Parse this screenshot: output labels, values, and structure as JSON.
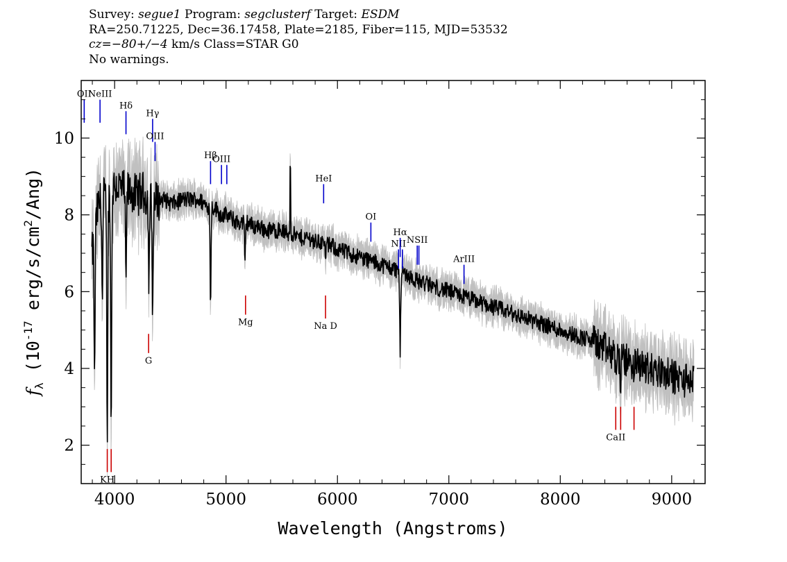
{
  "header": {
    "survey_label": "Survey:",
    "survey": "segue1",
    "program_label": "Program:",
    "program": "segclusterf",
    "target_label": "Target:",
    "target": "ESDM",
    "line2": "RA=250.71225, Dec=36.17458, Plate=2185, Fiber=115, MJD=53532",
    "cz_label": "cz=",
    "cz_value": "−80+/−4",
    "cz_rest": " km/s Class=STAR G0",
    "line4": "No warnings."
  },
  "chart_data": {
    "type": "line",
    "xlabel": "Wavelength (Angstroms)",
    "ylabel": "f_λ (10^-17 erg/s/cm^2/Ang)",
    "xlim": [
      3700,
      9300
    ],
    "ylim": [
      1,
      11.5
    ],
    "x_ticks": [
      4000,
      5000,
      6000,
      7000,
      8000,
      9000
    ],
    "y_ticks": [
      2,
      4,
      6,
      8,
      10
    ],
    "grid": false,
    "colors": {
      "flux": "#000000",
      "noise": "#c0c0c0",
      "emission": "#0000cc",
      "absorption": "#cc0000"
    },
    "series": [
      {
        "x": [
          3800,
          3850,
          3900,
          3950,
          4000,
          4050,
          4100,
          4150,
          4200,
          4250,
          4300,
          4350,
          4400,
          4450,
          4500,
          4550,
          4600,
          4650,
          4700,
          4750,
          4800,
          4850,
          4900,
          4950,
          5000,
          5050,
          5100,
          5150,
          5200,
          5250,
          5300,
          5350,
          5400,
          5450,
          5500,
          5550,
          5600,
          5650,
          5700,
          5750,
          5800,
          5850,
          5900,
          5950,
          6000,
          6100,
          6200,
          6300,
          6400,
          6500,
          6600,
          6700,
          6800,
          6900,
          7000,
          7100,
          7200,
          7300,
          7400,
          7500,
          7600,
          7700,
          7800,
          7900,
          8000,
          8100,
          8200,
          8300,
          8400,
          8500,
          8600,
          8700,
          8800,
          8900,
          9000,
          9100,
          9200
        ],
        "y": [
          7.0,
          8.2,
          8.5,
          8.4,
          8.8,
          8.7,
          8.6,
          8.6,
          8.5,
          8.6,
          8.4,
          8.3,
          8.4,
          8.4,
          8.3,
          8.3,
          8.4,
          8.4,
          8.4,
          8.4,
          8.3,
          8.2,
          8.2,
          8.0,
          8.0,
          7.9,
          7.8,
          7.8,
          7.8,
          7.7,
          7.7,
          7.6,
          7.6,
          7.6,
          7.6,
          7.5,
          7.5,
          7.4,
          7.4,
          7.4,
          7.3,
          7.3,
          7.2,
          7.2,
          7.1,
          7.0,
          6.9,
          6.8,
          6.7,
          6.6,
          6.5,
          6.3,
          6.2,
          6.1,
          6.0,
          5.9,
          5.8,
          5.7,
          5.6,
          5.5,
          5.4,
          5.3,
          5.2,
          5.1,
          5.0,
          4.9,
          4.8,
          4.7,
          4.5,
          4.3,
          4.2,
          4.1,
          4.0,
          3.9,
          3.8,
          3.7,
          3.7
        ]
      }
    ],
    "absorption_dips": [
      {
        "x": 3820,
        "y": 3.5
      },
      {
        "x": 3890,
        "y": 5.6
      },
      {
        "x": 3934,
        "y": 2.2
      },
      {
        "x": 3969,
        "y": 2.1
      },
      {
        "x": 4102,
        "y": 6.0
      },
      {
        "x": 4308,
        "y": 6.2
      },
      {
        "x": 4341,
        "y": 5.3
      },
      {
        "x": 4861,
        "y": 5.7
      },
      {
        "x": 5170,
        "y": 6.7
      },
      {
        "x": 5893,
        "y": 7.0
      },
      {
        "x": 6563,
        "y": 4.4
      },
      {
        "x": 8498,
        "y": 4.0
      },
      {
        "x": 8542,
        "y": 3.6
      },
      {
        "x": 8662,
        "y": 3.6
      }
    ],
    "spikes": [
      {
        "x": 5577,
        "y": 10.4
      },
      {
        "x": 8300,
        "y": 5.3
      },
      {
        "x": 8920,
        "y": 4.6
      }
    ],
    "emission_lines": [
      {
        "label": "OII",
        "x": 3727,
        "y0": 10.4,
        "y1": 11.0
      },
      {
        "label": "NeIII",
        "x": 3869,
        "y0": 10.4,
        "y1": 11.0
      },
      {
        "label": "Hδ",
        "x": 4102,
        "y0": 10.1,
        "y1": 10.7
      },
      {
        "label": "Hγ",
        "x": 4341,
        "y0": 9.9,
        "y1": 10.5
      },
      {
        "label": "OIII",
        "x": 4363,
        "y0": 9.4,
        "y1": 9.9
      },
      {
        "label": "Hβ",
        "x": 4861,
        "y0": 8.8,
        "y1": 9.4
      },
      {
        "label": "OIII",
        "x": 4959,
        "y0": 8.8,
        "y1": 9.3
      },
      {
        "label": "",
        "x": 5007,
        "y0": 8.8,
        "y1": 9.3
      },
      {
        "label": "HeI",
        "x": 5876,
        "y0": 8.3,
        "y1": 8.8
      },
      {
        "label": "OI",
        "x": 6300,
        "y0": 7.3,
        "y1": 7.8
      },
      {
        "label": "NII",
        "x": 6548,
        "y0": 6.6,
        "y1": 7.1
      },
      {
        "label": "Hα",
        "x": 6563,
        "y0": 6.9,
        "y1": 7.4
      },
      {
        "label": "",
        "x": 6583,
        "y0": 6.6,
        "y1": 7.1
      },
      {
        "label": "NSII",
        "x": 6716,
        "y0": 6.7,
        "y1": 7.2
      },
      {
        "label": "",
        "x": 6731,
        "y0": 6.7,
        "y1": 7.2
      },
      {
        "label": "ArIII",
        "x": 7136,
        "y0": 6.2,
        "y1": 6.7
      }
    ],
    "absorption_lines": [
      {
        "label": "KH",
        "x": 3934,
        "y0": 1.3,
        "y1": 1.9
      },
      {
        "label": "",
        "x": 3969,
        "y0": 1.3,
        "y1": 1.9
      },
      {
        "label": "G",
        "x": 4305,
        "y0": 4.4,
        "y1": 4.9
      },
      {
        "label": "Mg",
        "x": 5175,
        "y0": 5.4,
        "y1": 5.9
      },
      {
        "label": "Na D",
        "x": 5893,
        "y0": 5.3,
        "y1": 5.9
      },
      {
        "label": "CaII",
        "x": 8498,
        "y0": 2.4,
        "y1": 3.0
      },
      {
        "label": "",
        "x": 8542,
        "y0": 2.4,
        "y1": 3.0
      },
      {
        "label": "",
        "x": 8662,
        "y0": 2.4,
        "y1": 3.0
      }
    ]
  }
}
